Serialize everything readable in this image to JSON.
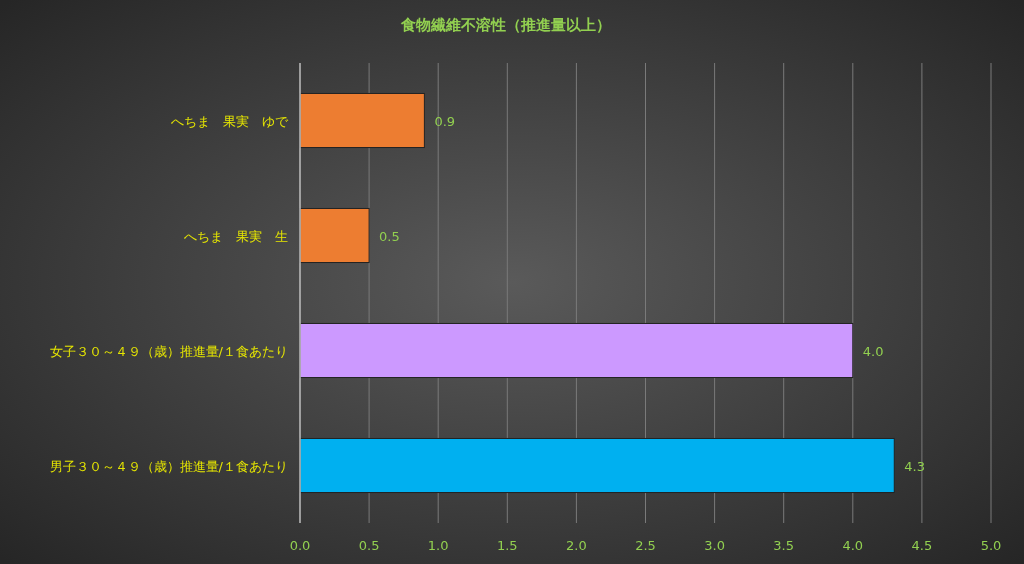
{
  "chart_data": {
    "type": "bar",
    "orientation": "horizontal",
    "title": "食物繊維不溶性（推進量以上）",
    "categories": [
      "へちま　果実　ゆで",
      "へちま　果実　生",
      "女子３０～４９（歳）推進量/１食あたり",
      "男子３０～４９（歳）推進量/１食あたり"
    ],
    "values": [
      0.9,
      0.5,
      4.0,
      4.3
    ],
    "value_labels": [
      "0.9",
      "0.5",
      "4.0",
      "4.3"
    ],
    "colors": [
      "#ed7d31",
      "#ed7d31",
      "#cc99ff",
      "#00b0f0"
    ],
    "xlim": [
      0,
      5
    ],
    "xticks": [
      {
        "value": 0,
        "label": "0.0"
      },
      0.5,
      {
        "value": 1,
        "label": "1.0"
      },
      1.5,
      {
        "value": 2,
        "label": "2.0"
      },
      2.5,
      {
        "value": 3,
        "label": "3.0"
      },
      3.5,
      {
        "value": 4,
        "label": "4.0"
      },
      4.5,
      {
        "value": 5,
        "label": "5.0"
      }
    ],
    "grid": "x"
  }
}
